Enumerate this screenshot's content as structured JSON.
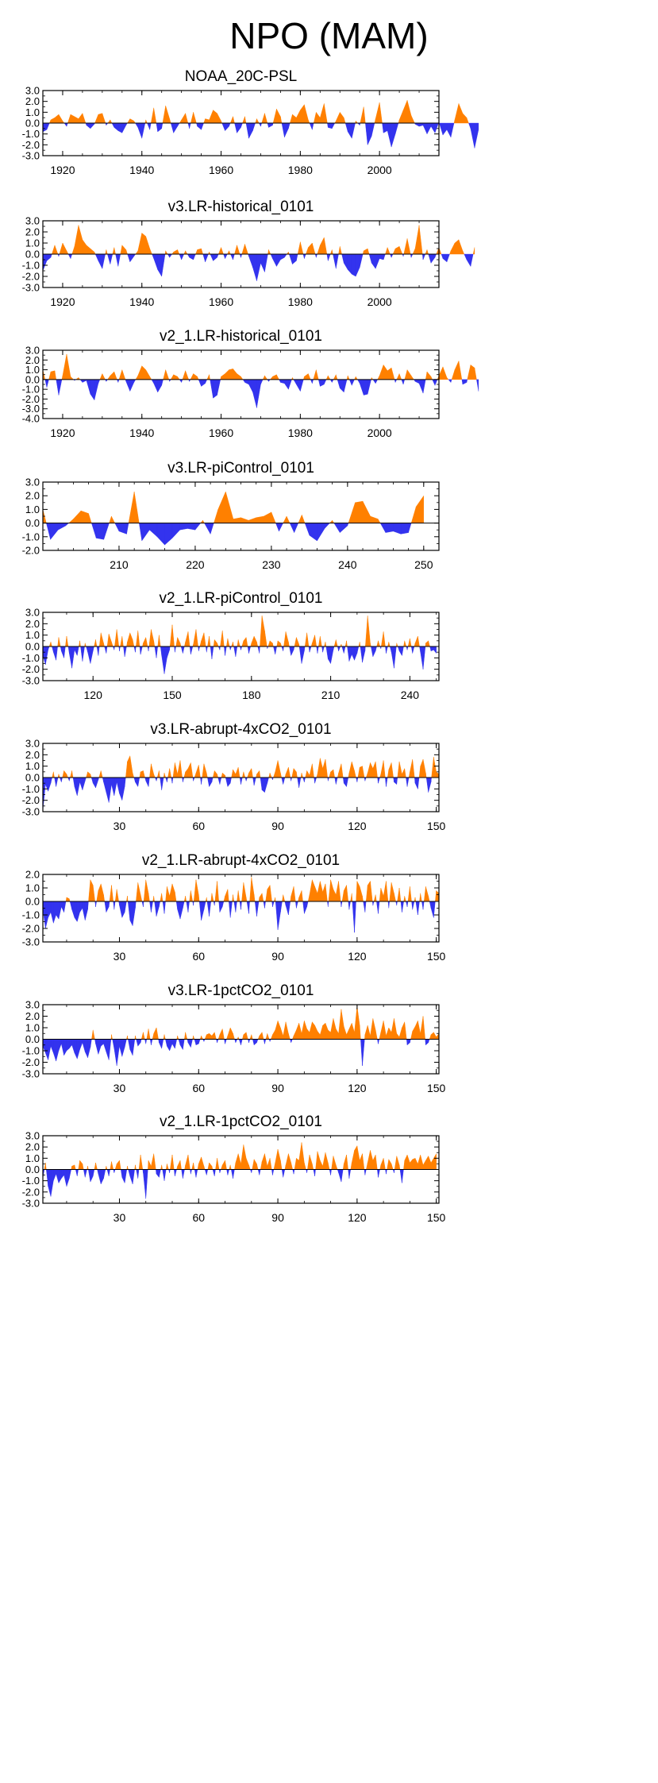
{
  "title": "NPO (MAM)",
  "colors": {
    "positive": "#ff8000",
    "negative": "#3333ee",
    "axis": "#000000"
  },
  "chart_data": [
    {
      "type": "area",
      "title": "NOAA_20C-PSL",
      "xlim": [
        1915,
        2015
      ],
      "ylim": [
        -3.0,
        3.0
      ],
      "yticks": [
        "3.0",
        "2.0",
        "1.0",
        "0.0",
        "-1.0",
        "-2.0",
        "-3.0"
      ],
      "xticks": [
        1920,
        1940,
        1960,
        1980,
        2000
      ],
      "x_start": 1915,
      "values": [
        -0.8,
        -0.6,
        0.3,
        0.5,
        0.8,
        0.2,
        -0.3,
        0.8,
        0.6,
        0.4,
        0.9,
        -0.2,
        -0.5,
        -0.1,
        0.8,
        0.9,
        -0.2,
        0.3,
        -0.4,
        -0.7,
        -0.9,
        -0.2,
        0.4,
        0.2,
        -0.4,
        -1.4,
        0.3,
        -0.6,
        1.4,
        -0.8,
        -0.5,
        1.6,
        0.4,
        -0.9,
        -0.3,
        0.3,
        0.9,
        -0.5,
        1.0,
        -0.3,
        -0.6,
        0.4,
        0.3,
        1.2,
        0.9,
        0.2,
        -0.7,
        -0.3,
        0.6,
        -0.9,
        -0.4,
        0.6,
        -1.4,
        -0.7,
        0.4,
        -0.3,
        0.9,
        -0.4,
        -0.2,
        1.3,
        0.6,
        -1.3,
        -0.5,
        0.8,
        0.5,
        1.2,
        1.7,
        0.3,
        -0.6,
        1.0,
        0.5,
        1.8,
        -0.4,
        -0.5,
        0.2,
        1.0,
        0.5,
        -0.8,
        -1.4,
        0.2,
        -0.2,
        1.5,
        -2.0,
        -1.2,
        0.4,
        1.9,
        -0.9,
        -0.7,
        -2.2,
        -1.0,
        0.3,
        1.2,
        2.1,
        0.7,
        -0.1,
        -0.3,
        -0.2,
        -1.0,
        -0.3,
        -0.9,
        0.1,
        -1.1,
        -0.6,
        -1.3,
        0.3,
        1.8,
        0.9,
        0.5,
        -0.5,
        -2.3,
        -0.6
      ]
    },
    {
      "type": "area",
      "title": "v3.LR-historical_0101",
      "xlim": [
        1915,
        2015
      ],
      "ylim": [
        -3.0,
        3.0
      ],
      "yticks": [
        "3.0",
        "2.0",
        "1.0",
        "0.0",
        "-1.0",
        "-2.0",
        "-3.0"
      ],
      "xticks": [
        1920,
        1940,
        1960,
        1980,
        2000
      ],
      "x_start": 1915,
      "values": [
        -1.5,
        -0.6,
        -0.3,
        0.8,
        -0.2,
        1.0,
        0.3,
        -0.4,
        0.7,
        2.6,
        1.3,
        0.8,
        0.5,
        0.2,
        -0.6,
        -1.3,
        0.4,
        -0.9,
        0.6,
        -1.1,
        0.8,
        0.4,
        -0.7,
        -0.2,
        0.3,
        1.9,
        1.6,
        0.5,
        -0.4,
        -1.4,
        -2.0,
        0.3,
        -0.3,
        0.2,
        0.4,
        -0.5,
        0.3,
        -0.3,
        -0.5,
        0.4,
        0.5,
        -0.7,
        0.2,
        -0.6,
        -0.3,
        0.6,
        -0.4,
        0.3,
        -0.5,
        0.8,
        -0.3,
        0.9,
        -0.2,
        -1.2,
        -2.4,
        -0.8,
        -1.6,
        0.4,
        -0.4,
        -1.1,
        -0.5,
        -0.3,
        0.2,
        -0.9,
        -0.6,
        1.1,
        -0.4,
        0.6,
        1.0,
        -0.3,
        0.8,
        1.5,
        -0.6,
        0.4,
        -1.3,
        0.7,
        -0.8,
        -1.4,
        -1.8,
        -2.0,
        -1.2,
        0.3,
        0.5,
        -0.8,
        -1.3,
        -0.4,
        -0.5,
        0.6,
        -0.3,
        0.5,
        0.7,
        -0.2,
        1.4,
        -0.3,
        0.5,
        2.6,
        -0.5,
        0.4,
        -0.8,
        -0.3,
        0.6,
        -0.4,
        -0.7,
        0.3,
        1.0,
        1.3,
        0.3,
        -0.5,
        -1.1,
        0.6
      ]
    },
    {
      "type": "area",
      "title": "v2_1.LR-historical_0101",
      "xlim": [
        1915,
        2015
      ],
      "ylim": [
        -4.0,
        3.0
      ],
      "yticks": [
        "3.0",
        "2.0",
        "1.0",
        "0.0",
        "-1.0",
        "-2.0",
        "-3.0",
        "-4.0"
      ],
      "xticks": [
        1920,
        1940,
        1960,
        1980,
        2000
      ],
      "x_start": 1915,
      "values": [
        1.0,
        -0.8,
        0.8,
        0.9,
        -1.6,
        0.4,
        2.6,
        0.3,
        -0.1,
        0.2,
        -0.3,
        -0.1,
        -1.5,
        -2.1,
        -0.4,
        0.6,
        -0.2,
        0.4,
        0.8,
        -0.3,
        1.0,
        -0.2,
        -1.2,
        -0.3,
        0.4,
        1.4,
        1.0,
        0.3,
        -0.4,
        -1.3,
        -0.6,
        1.0,
        -0.2,
        0.5,
        0.3,
        -0.3,
        0.9,
        -0.2,
        0.6,
        0.3,
        -0.7,
        -0.4,
        0.5,
        -1.9,
        -1.6,
        0.3,
        0.6,
        1.0,
        1.1,
        0.6,
        0.3,
        -0.3,
        -0.5,
        -1.3,
        -2.9,
        -0.5,
        0.4,
        -0.2,
        0.3,
        0.5,
        -0.3,
        -0.4,
        -1.0,
        0.2,
        -0.5,
        -1.2,
        0.3,
        0.6,
        -0.4,
        1.0,
        -0.7,
        -0.5,
        0.4,
        -0.3,
        0.5,
        -0.9,
        -1.3,
        0.4,
        -0.6,
        0.3,
        -0.4,
        -1.6,
        -1.5,
        0.2,
        -0.4,
        0.4,
        1.5,
        0.9,
        1.2,
        -0.3,
        0.6,
        -0.5,
        1.0,
        0.4,
        -0.2,
        -0.4,
        -1.4,
        0.8,
        0.3,
        -0.6,
        0.4,
        1.3,
        0.2,
        -0.3,
        1.0,
        1.9,
        -0.5,
        -0.3,
        1.5,
        1.2,
        -1.2
      ]
    },
    {
      "type": "area",
      "title": "v3.LR-piControl_0101",
      "xlim": [
        200,
        252
      ],
      "ylim": [
        -2.0,
        3.0
      ],
      "yticks": [
        "3.0",
        "2.0",
        "1.0",
        "0.0",
        "-1.0",
        "-2.0"
      ],
      "xticks": [
        210,
        220,
        230,
        240,
        250
      ],
      "x_start": 200,
      "values": [
        1.0,
        -1.2,
        -0.5,
        -0.2,
        0.3,
        0.9,
        0.7,
        -1.1,
        -1.2,
        0.5,
        -0.6,
        -0.8,
        2.3,
        -1.3,
        -0.5,
        -1.0,
        -1.6,
        -1.1,
        -0.5,
        -0.4,
        -0.5,
        0.2,
        -0.8,
        1.0,
        2.3,
        0.3,
        0.4,
        0.2,
        0.4,
        0.5,
        0.8,
        -0.6,
        0.5,
        -0.7,
        0.6,
        -0.9,
        -1.3,
        -0.4,
        0.2,
        -0.7,
        -0.2,
        1.5,
        1.6,
        0.5,
        0.3,
        -0.7,
        -0.6,
        -0.8,
        -0.7,
        1.2,
        2.0
      ]
    },
    {
      "type": "area",
      "title": "v2_1.LR-piControl_0101",
      "xlim": [
        101,
        251
      ],
      "ylim": [
        -3.0,
        3.0
      ],
      "yticks": [
        "3.0",
        "2.0",
        "1.0",
        "0.0",
        "-1.0",
        "-2.0",
        "-3.0"
      ],
      "xticks": [
        120,
        150,
        180,
        210,
        240
      ],
      "x_start": 101,
      "values": [
        -0.8,
        -1.6,
        -0.3,
        0.4,
        -0.5,
        -1.2,
        0.8,
        -0.4,
        -1.0,
        0.9,
        -0.6,
        -1.9,
        -0.3,
        -0.8,
        0.5,
        -1.3,
        0.3,
        -0.5,
        -1.5,
        -0.4,
        0.6,
        -0.8,
        1.2,
        0.3,
        -0.6,
        1.1,
        0.4,
        -0.3,
        1.5,
        -0.4,
        0.9,
        -0.9,
        0.4,
        1.2,
        0.6,
        -0.5,
        1.4,
        -0.7,
        0.3,
        0.8,
        -0.4,
        1.5,
        0.5,
        -1.0,
        1.0,
        -0.8,
        -2.4,
        -1.0,
        -0.3,
        1.9,
        -0.5,
        0.8,
        0.3,
        -0.6,
        0.4,
        1.3,
        -0.7,
        0.2,
        1.5,
        -0.4,
        0.5,
        1.2,
        -0.5,
        0.9,
        -1.1,
        0.6,
        0.3,
        -0.3,
        1.4,
        -0.8,
        0.7,
        -0.3,
        0.4,
        -0.9,
        0.6,
        -0.3,
        0.5,
        0.8,
        -0.6,
        0.3,
        0.9,
        0.4,
        -0.6,
        2.7,
        1.4,
        -0.2,
        0.5,
        0.3,
        -0.7,
        0.5,
        0.3,
        -0.4,
        1.3,
        0.4,
        -0.8,
        -0.3,
        0.8,
        0.2,
        -1.5,
        -0.4,
        1.2,
        -0.5,
        0.3,
        1.0,
        -0.6,
        0.9,
        -0.5,
        0.4,
        -1.1,
        -1.5,
        -0.3,
        0.6,
        -0.4,
        0.2,
        -0.6,
        0.5,
        -1.3,
        -0.7,
        -1.2,
        -0.6,
        0.4,
        -1.4,
        -0.4,
        2.7,
        0.3,
        -0.9,
        -0.4,
        0.5,
        -0.2,
        1.3,
        -0.6,
        0.4,
        -0.5,
        -1.9,
        0.3,
        -0.4,
        -0.8,
        0.5,
        -0.3,
        0.7,
        -0.6,
        0.3,
        0.9,
        -0.5,
        -2.0,
        0.3,
        0.5,
        -0.4,
        -0.3,
        -0.6
      ]
    },
    {
      "type": "area",
      "title": "v3.LR-abrupt-4xCO2_0101",
      "xlim": [
        1,
        151
      ],
      "ylim": [
        -3.0,
        3.0
      ],
      "yticks": [
        "3.0",
        "2.0",
        "1.0",
        "0.0",
        "-1.0",
        "-2.0",
        "-3.0"
      ],
      "xticks": [
        30,
        60,
        90,
        120,
        150
      ],
      "x_start": 1,
      "values": [
        -2.9,
        -0.6,
        -1.2,
        -0.5,
        0.5,
        -0.8,
        0.3,
        -0.4,
        0.6,
        0.3,
        -0.3,
        0.6,
        -0.8,
        -1.6,
        -0.4,
        -1.1,
        -0.3,
        0.5,
        0.3,
        -0.5,
        -0.9,
        -0.2,
        0.6,
        -0.4,
        -1.3,
        -2.2,
        -0.6,
        -1.6,
        -0.4,
        -1.4,
        -2.0,
        -0.8,
        1.4,
        1.9,
        0.4,
        -0.4,
        -0.8,
        0.5,
        0.6,
        -0.3,
        -0.8,
        1.2,
        0.3,
        -0.3,
        0.6,
        -1.1,
        0.4,
        -0.4,
        0.8,
        -0.5,
        1.3,
        0.3,
        1.5,
        -0.4,
        0.5,
        0.8,
        1.3,
        -0.3,
        0.4,
        1.1,
        -0.6,
        1.2,
        0.4,
        -0.8,
        -0.4,
        0.6,
        0.3,
        -0.6,
        0.4,
        0.2,
        -0.8,
        -0.5,
        0.7,
        0.3,
        0.9,
        -0.6,
        0.5,
        -0.3,
        0.4,
        0.8,
        -0.7,
        0.3,
        0.6,
        -1.1,
        -1.3,
        -0.5,
        0.4,
        -0.2,
        0.5,
        1.5,
        0.4,
        -0.6,
        0.3,
        0.9,
        -0.3,
        0.8,
        0.5,
        -0.9,
        0.4,
        -0.4,
        0.6,
        0.2,
        1.2,
        -0.5,
        0.3,
        1.7,
        0.8,
        1.6,
        -0.3,
        0.5,
        0.7,
        -0.6,
        0.4,
        1.2,
        -0.5,
        -0.8,
        0.4,
        1.4,
        0.6,
        -0.4,
        0.9,
        1.0,
        -0.3,
        0.4,
        1.3,
        0.8,
        1.4,
        -0.5,
        0.3,
        1.5,
        -0.8,
        0.7,
        1.3,
        -0.4,
        -0.6,
        1.4,
        0.3,
        0.8,
        -0.8,
        0.5,
        1.6,
        -0.5,
        -1.0,
        1.0,
        1.6,
        0.4,
        -1.3,
        -0.4,
        1.8,
        0.5,
        0.3
      ]
    },
    {
      "type": "area",
      "title": "v2_1.LR-abrupt-4xCO2_0101",
      "xlim": [
        1,
        151
      ],
      "ylim": [
        -3.0,
        2.0
      ],
      "yticks": [
        "2.0",
        "1.0",
        "0.0",
        "-1.0",
        "-2.0",
        "-3.0"
      ],
      "xticks": [
        30,
        60,
        90,
        120,
        150
      ],
      "x_start": 1,
      "values": [
        -0.6,
        -2.0,
        -1.2,
        -0.8,
        -1.6,
        -1.0,
        -1.3,
        -0.4,
        -0.8,
        0.3,
        0.2,
        -0.6,
        -1.2,
        -1.5,
        -0.8,
        -0.5,
        -1.4,
        -0.6,
        1.6,
        1.2,
        -0.4,
        0.8,
        1.3,
        0.5,
        -0.8,
        -0.4,
        1.2,
        -0.6,
        0.9,
        -0.3,
        -1.2,
        -0.8,
        0.4,
        -1.4,
        -1.8,
        -0.5,
        1.4,
        0.5,
        -0.4,
        1.6,
        0.6,
        -0.8,
        0.4,
        -1.1,
        -0.4,
        0.6,
        -0.9,
        1.1,
        0.4,
        1.3,
        0.7,
        -0.6,
        -1.3,
        -0.5,
        0.4,
        -0.8,
        0.8,
        -0.3,
        1.6,
        0.5,
        -1.4,
        -0.6,
        0.3,
        -1.1,
        0.6,
        -0.3,
        1.5,
        -0.8,
        -0.4,
        0.4,
        0.9,
        -1.2,
        0.5,
        -0.8,
        0.8,
        -0.6,
        1.4,
        0.3,
        -0.9,
        1.8,
        0.5,
        -1.1,
        0.3,
        0.6,
        -0.5,
        0.9,
        1.2,
        -0.4,
        0.3,
        -2.1,
        -0.8,
        0.5,
        -0.3,
        -1.0,
        0.4,
        1.1,
        -0.5,
        0.3,
        0.8,
        -0.9,
        -0.4,
        0.5,
        1.6,
        1.1,
        0.6,
        1.5,
        0.7,
        1.3,
        -0.4,
        1.6,
        0.9,
        0.5,
        1.5,
        -0.4,
        0.8,
        1.2,
        -0.6,
        0.6,
        -2.3,
        1.5,
        1.1,
        0.4,
        -0.8,
        1.2,
        1.5,
        -0.3,
        0.5,
        -0.9,
        1.0,
        0.4,
        1.5,
        -0.5,
        1.4,
        0.6,
        -0.3,
        1.0,
        -0.8,
        0.4,
        -0.4,
        1.1,
        -0.6,
        0.3,
        -1.0,
        0.6,
        -0.6,
        1.1,
        0.4,
        -0.5,
        -1.2,
        0.8,
        0.6
      ]
    },
    {
      "type": "area",
      "title": "v3.LR-1pctCO2_0101",
      "xlim": [
        1,
        151
      ],
      "ylim": [
        -3.0,
        3.0
      ],
      "yticks": [
        "3.0",
        "2.0",
        "1.0",
        "0.0",
        "-1.0",
        "-2.0",
        "-3.0"
      ],
      "xticks": [
        30,
        60,
        90,
        120,
        150
      ],
      "x_start": 1,
      "values": [
        -0.6,
        -1.2,
        -1.8,
        -0.6,
        -1.2,
        -1.9,
        -1.0,
        -0.4,
        -1.4,
        -1.0,
        -0.8,
        -0.5,
        -1.2,
        -1.7,
        -0.9,
        -0.3,
        -1.1,
        -1.6,
        -0.7,
        0.8,
        -0.4,
        -1.3,
        -0.6,
        -0.4,
        -1.1,
        -1.8,
        0.4,
        -0.8,
        -2.3,
        -0.6,
        -1.5,
        -0.7,
        0.3,
        -0.9,
        -1.4,
        0.3,
        -0.6,
        -0.3,
        0.6,
        -0.4,
        0.9,
        -0.5,
        0.5,
        1.0,
        -0.3,
        -0.8,
        0.4,
        -0.6,
        -1.0,
        -0.4,
        -0.8,
        0.3,
        -0.5,
        -0.9,
        0.6,
        -0.3,
        -0.7,
        0.3,
        -0.5,
        -0.4,
        0.3,
        -0.2,
        0.4,
        0.5,
        0.3,
        0.6,
        -0.3,
        0.4,
        0.9,
        -0.4,
        0.3,
        1.0,
        0.5,
        -0.3,
        0.2,
        -0.5,
        0.4,
        0.6,
        -0.3,
        0.4,
        -0.5,
        -0.3,
        0.3,
        0.6,
        -0.4,
        0.5,
        -0.2,
        0.4,
        0.8,
        1.6,
        1.0,
        0.3,
        1.5,
        0.5,
        -0.3,
        0.3,
        0.8,
        1.4,
        0.5,
        1.6,
        0.9,
        0.6,
        1.5,
        1.2,
        0.7,
        0.4,
        1.2,
        1.4,
        0.8,
        0.6,
        1.8,
        0.9,
        0.5,
        2.6,
        1.1,
        0.4,
        0.9,
        1.4,
        0.6,
        2.9,
        1.2,
        -2.3,
        0.4,
        1.2,
        0.3,
        1.8,
        0.8,
        -0.4,
        0.6,
        1.6,
        0.3,
        1.0,
        0.6,
        1.8,
        0.5,
        0.2,
        1.0,
        1.5,
        -0.5,
        -0.3,
        0.7,
        1.1,
        1.6,
        0.5,
        2.0,
        -0.5,
        -0.3,
        0.4,
        0.6,
        0.2,
        0.5
      ]
    },
    {
      "type": "area",
      "title": "v2_1.LR-1pctCO2_0101",
      "xlim": [
        1,
        151
      ],
      "ylim": [
        -3.0,
        3.0
      ],
      "yticks": [
        "3.0",
        "2.0",
        "1.0",
        "0.0",
        "-1.0",
        "-2.0",
        "-3.0"
      ],
      "xticks": [
        30,
        60,
        90,
        120,
        150
      ],
      "x_start": 1,
      "values": [
        -0.8,
        0.6,
        -1.5,
        -2.4,
        -1.0,
        -0.4,
        -1.2,
        -0.8,
        -0.5,
        -1.5,
        -0.8,
        0.3,
        0.4,
        -0.6,
        0.8,
        0.5,
        -0.7,
        0.3,
        -1.1,
        -0.6,
        0.6,
        -0.4,
        -1.3,
        -0.8,
        0.3,
        -0.6,
        0.7,
        -0.3,
        0.5,
        0.8,
        -0.7,
        -1.2,
        0.3,
        -0.6,
        -1.3,
        0.4,
        -0.8,
        1.3,
        -0.3,
        -2.6,
        0.8,
        0.3,
        1.4,
        -0.4,
        -0.7,
        0.4,
        -1.0,
        0.5,
        -0.3,
        1.3,
        -0.6,
        0.3,
        0.8,
        -0.8,
        0.4,
        1.3,
        -0.4,
        0.6,
        -0.7,
        0.5,
        1.1,
        0.3,
        -0.5,
        0.6,
        0.3,
        -0.6,
        1.0,
        -0.3,
        0.4,
        0.8,
        -0.5,
        0.4,
        -0.8,
        0.6,
        1.4,
        0.5,
        2.2,
        1.0,
        0.4,
        -0.3,
        0.9,
        0.5,
        -0.5,
        0.7,
        1.4,
        0.3,
        1.0,
        -0.5,
        0.6,
        1.8,
        0.8,
        -0.7,
        0.4,
        1.4,
        0.6,
        -0.4,
        1.0,
        0.8,
        2.4,
        0.6,
        -0.3,
        1.3,
        0.5,
        -0.6,
        1.6,
        0.8,
        0.3,
        1.5,
        0.6,
        -0.5,
        1.2,
        0.4,
        -0.3,
        -1.1,
        0.5,
        1.3,
        -0.8,
        0.6,
        1.7,
        2.1,
        0.8,
        1.4,
        -0.5,
        0.6,
        1.7,
        0.8,
        1.3,
        -0.7,
        0.4,
        1.0,
        -0.4,
        0.9,
        0.5,
        -0.3,
        1.2,
        0.4,
        -1.2,
        0.8,
        1.3,
        0.6,
        0.9,
        1.0,
        0.5,
        1.3,
        0.4,
        0.8,
        1.2,
        0.6,
        1.0,
        1.4
      ]
    }
  ]
}
